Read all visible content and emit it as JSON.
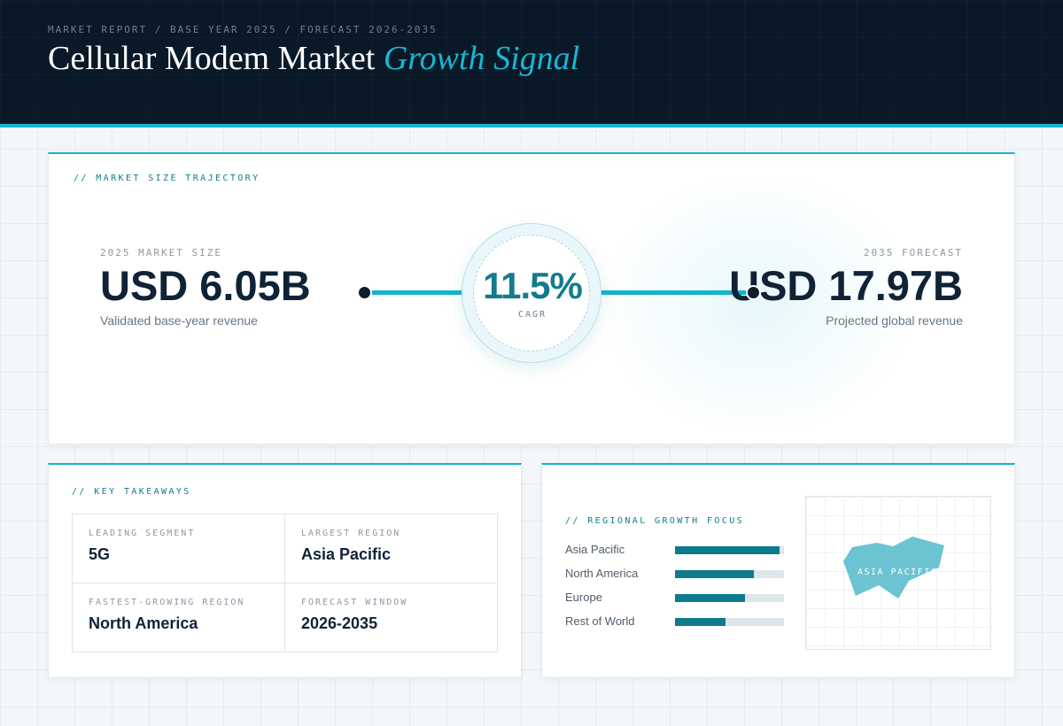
{
  "header": {
    "breadcrumb": "MARKET REPORT / BASE YEAR 2025 / FORECAST 2026-2035",
    "title_main": "Cellular Modem Market",
    "title_accent": "Growth Signal"
  },
  "trajectory": {
    "section_label": "// MARKET SIZE TRAJECTORY",
    "start": {
      "caption": "2025 MARKET SIZE",
      "value": "USD 6.05B",
      "sub": "Validated base-year revenue"
    },
    "cagr": {
      "value": "11.5%",
      "label": "CAGR"
    },
    "end": {
      "caption": "2035 FORECAST",
      "value": "USD 17.97B",
      "sub": "Projected global revenue"
    }
  },
  "takeaways": {
    "section_label": "// KEY TAKEAWAYS",
    "items": [
      {
        "label": "LEADING SEGMENT",
        "value": "5G"
      },
      {
        "label": "LARGEST REGION",
        "value": "Asia Pacific"
      },
      {
        "label": "FASTEST-GROWING REGION",
        "value": "North America"
      },
      {
        "label": "FORECAST WINDOW",
        "value": "2026-2035"
      }
    ]
  },
  "regions": {
    "section_label": "// REGIONAL GROWTH FOCUS",
    "items": [
      {
        "name": "Asia Pacific",
        "level": 0.96
      },
      {
        "name": "North America",
        "level": 0.72
      },
      {
        "name": "Europe",
        "level": 0.64
      },
      {
        "name": "Rest of World",
        "level": 0.46
      }
    ],
    "map_label": "ASIA PACIFIC",
    "colors": {
      "bar": "#0f7a8a",
      "track": "#dde6ea",
      "map_shape": "#6cc3d1"
    }
  }
}
